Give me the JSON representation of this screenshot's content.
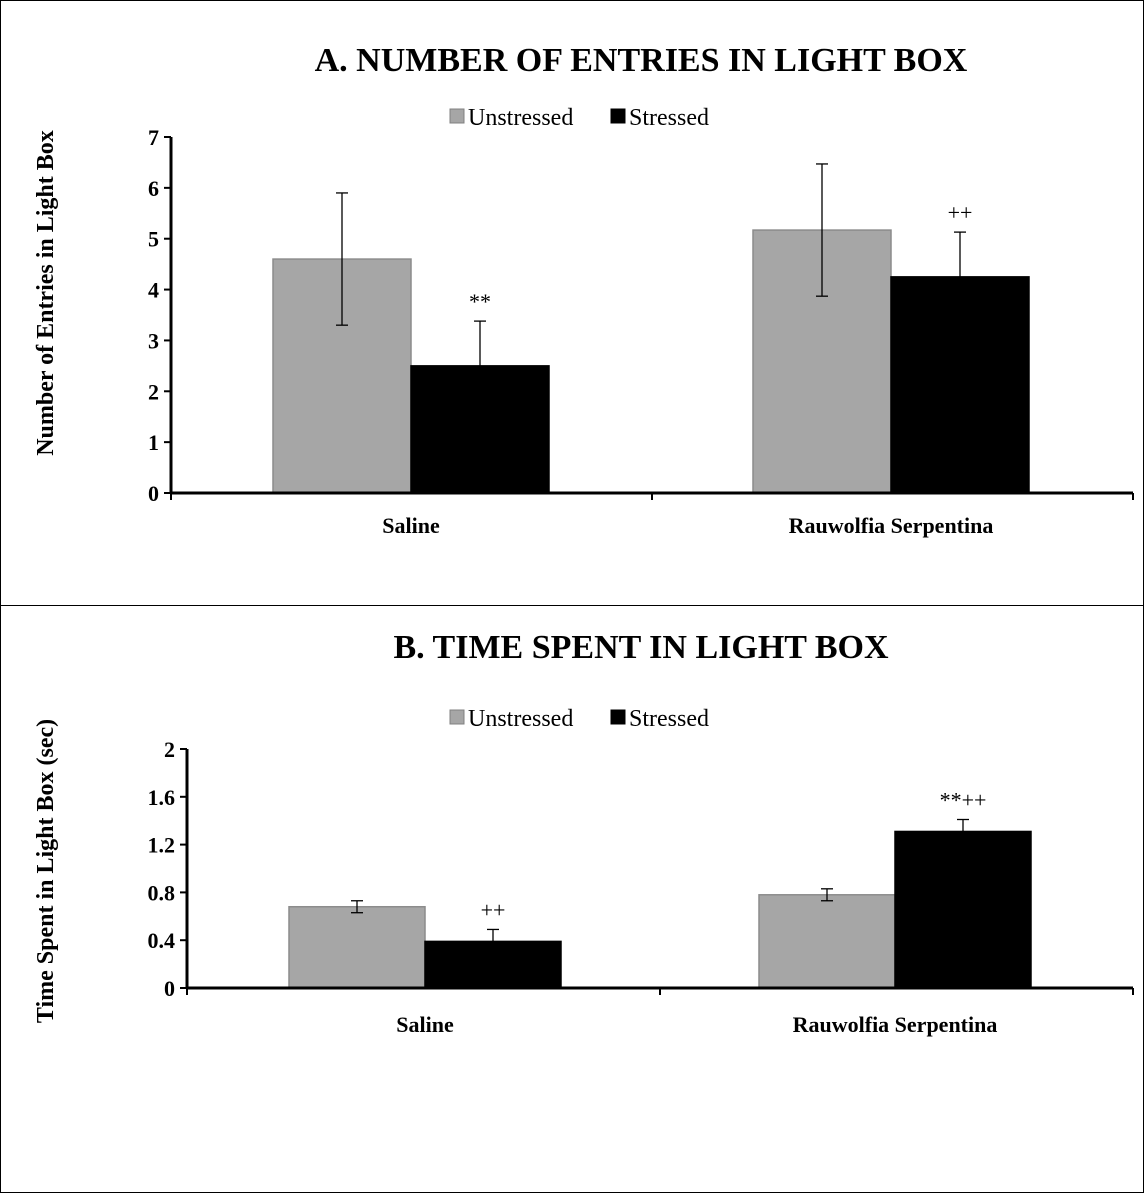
{
  "chart_data": [
    {
      "type": "bar",
      "title": "A. NUMBER OF ENTRIES IN LIGHT BOX",
      "xlabel": "",
      "ylabel": "Number of Entries in Light Box",
      "ylim": [
        0,
        7
      ],
      "yticks": [
        "0",
        "1",
        "2",
        "3",
        "4",
        "5",
        "6",
        "7"
      ],
      "categories": [
        "Saline",
        "Rauwolfia Serpentina"
      ],
      "legend_position": "top-center",
      "series": [
        {
          "name": "Unstressed",
          "color": "#a6a6a6",
          "values": [
            4.6,
            5.17
          ],
          "errors": [
            1.3,
            1.3
          ]
        },
        {
          "name": "Stressed",
          "color": "#000000",
          "values": [
            2.5,
            4.25
          ],
          "errors": [
            0.88,
            0.88
          ]
        }
      ],
      "annotations": [
        {
          "category": 0,
          "series": 1,
          "text": "**"
        },
        {
          "category": 1,
          "series": 1,
          "text": "++"
        }
      ]
    },
    {
      "type": "bar",
      "title": "B. TIME SPENT IN LIGHT BOX",
      "xlabel": "",
      "ylabel": "Time Spent in Light Box (sec)",
      "ylim": [
        0,
        2
      ],
      "yticks": [
        "0",
        "0.4",
        "0.8",
        "1.2",
        "1.6",
        "2"
      ],
      "categories": [
        "Saline",
        "Rauwolfia Serpentina"
      ],
      "legend_position": "top-center",
      "series": [
        {
          "name": "Unstressed",
          "color": "#a6a6a6",
          "values": [
            0.68,
            0.78
          ],
          "errors": [
            0.05,
            0.05
          ]
        },
        {
          "name": "Stressed",
          "color": "#000000",
          "values": [
            0.39,
            1.31
          ],
          "errors": [
            0.1,
            0.1
          ]
        }
      ],
      "annotations": [
        {
          "category": 0,
          "series": 1,
          "text": "++"
        },
        {
          "category": 1,
          "series": 1,
          "text": "**++"
        }
      ]
    }
  ]
}
